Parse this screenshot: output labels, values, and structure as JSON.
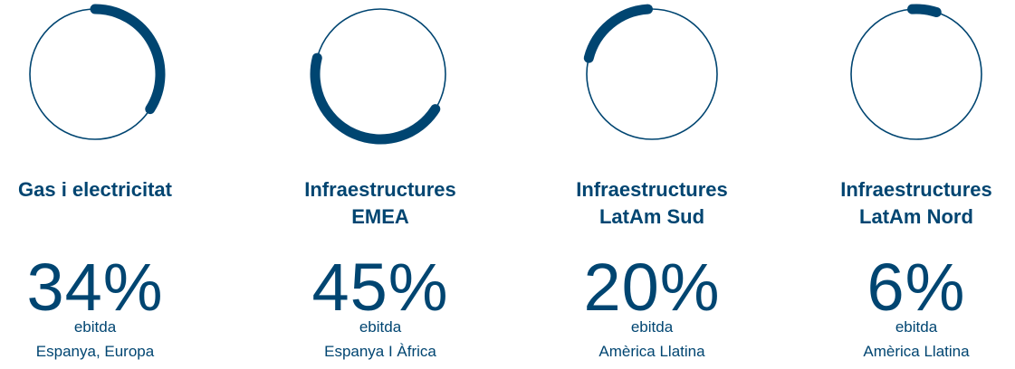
{
  "chart_data": {
    "type": "progress-ring",
    "color": "#004571",
    "categories": [
      "Gas i electricitat",
      "Infraestructures EMEA",
      "Infraestructures LatAm Sud",
      "Infraestructures LatAm Nord"
    ],
    "values": [
      34,
      45,
      20,
      6
    ],
    "value_labels": [
      "34%",
      "45%",
      "20%",
      "6%"
    ],
    "metrics": [
      "ebitda",
      "ebitda",
      "ebitda",
      "ebitda"
    ],
    "regions": [
      "Espanya, Europa",
      "Espanya I Àfrica",
      "Amèrica Llatina",
      "Amèrica Llatina"
    ]
  }
}
